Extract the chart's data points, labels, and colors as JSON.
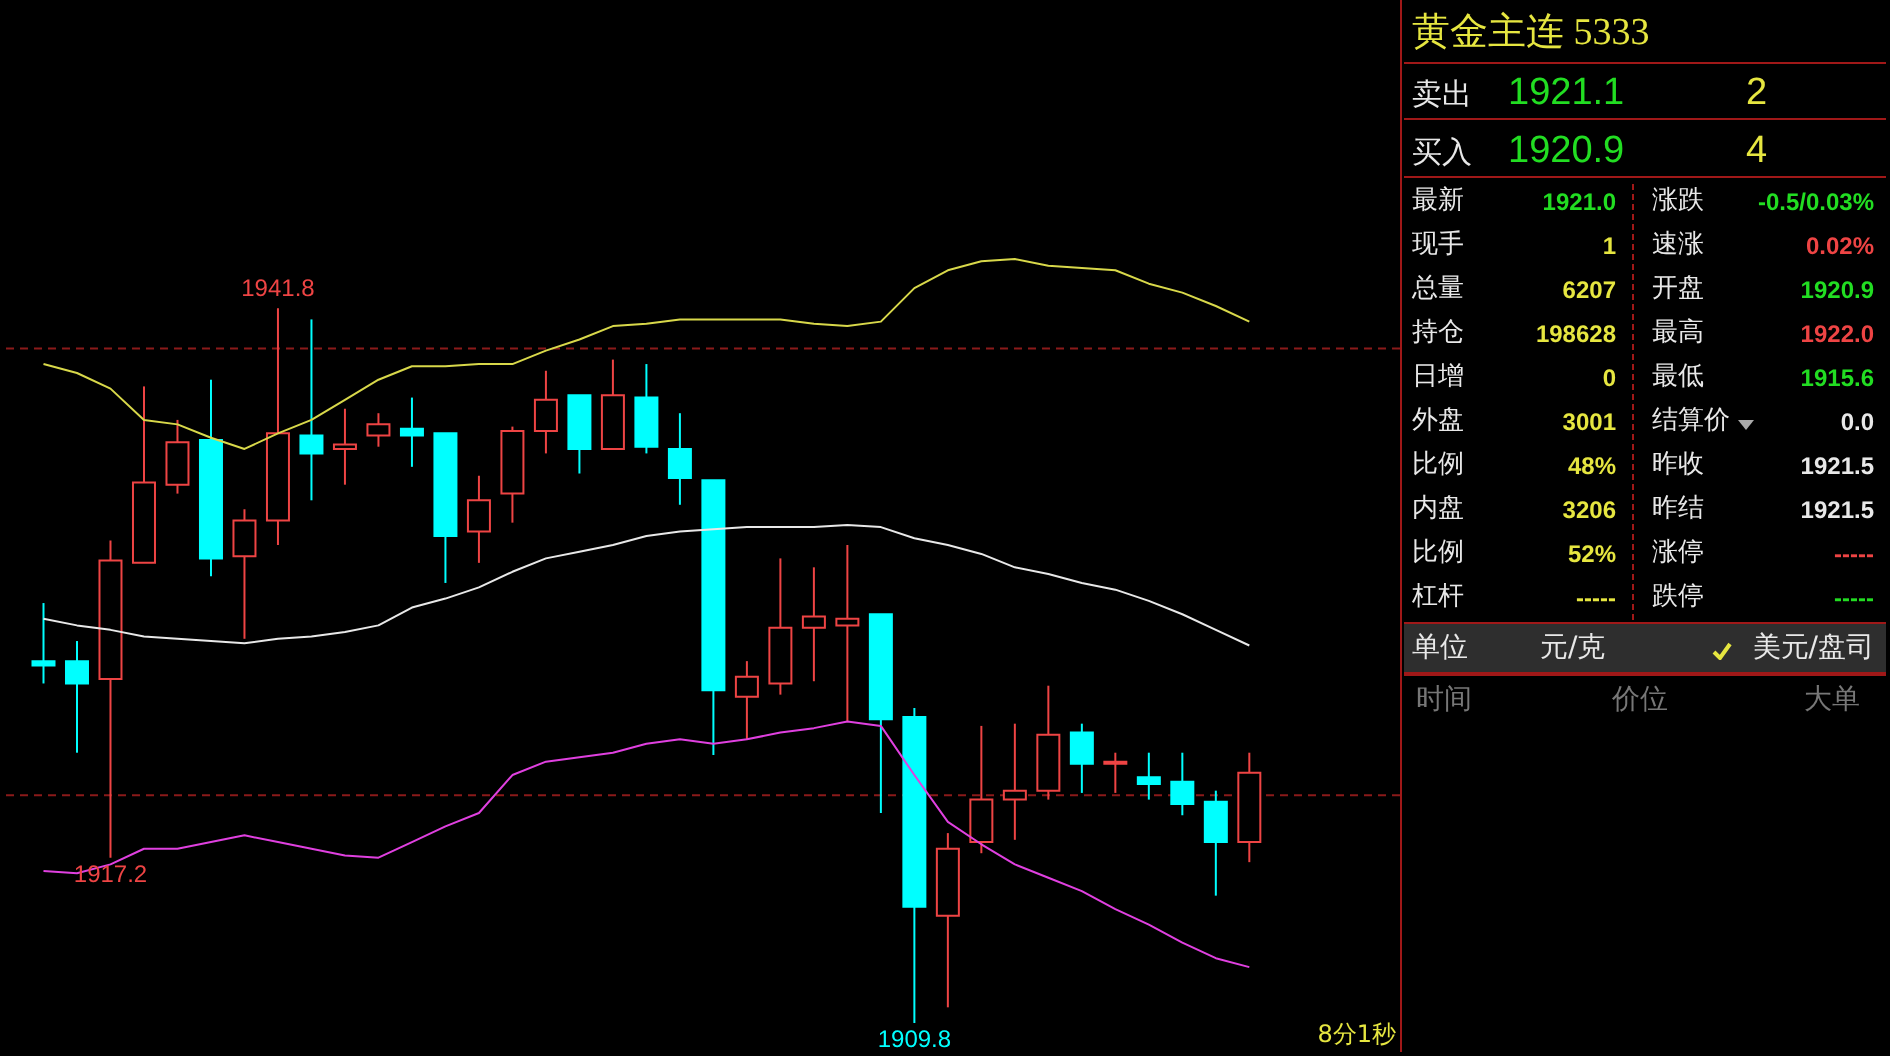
{
  "chart_data": [
    {
      "type": "candlestick",
      "categories": [
        null,
        null,
        null,
        null,
        null,
        null,
        null,
        null,
        null,
        null,
        null,
        null,
        null,
        null,
        null,
        null,
        null,
        null,
        null,
        null,
        null,
        null,
        null,
        null,
        null,
        null,
        null,
        null,
        null,
        null,
        null,
        null,
        null,
        null,
        null,
        null,
        null
      ],
      "ohlc": [
        [
          1926.0,
          1928.6,
          1925.0,
          1925.8
        ],
        [
          1926.0,
          1926.9,
          1921.9,
          1925.0
        ],
        [
          1925.2,
          1931.4,
          1917.2,
          1930.5
        ],
        [
          1930.4,
          1938.3,
          1930.4,
          1934.0
        ],
        [
          1933.9,
          1936.8,
          1933.5,
          1935.8
        ],
        [
          1935.9,
          1938.6,
          1929.8,
          1930.6
        ],
        [
          1930.7,
          1932.8,
          1927.0,
          1932.3
        ],
        [
          1932.3,
          1941.8,
          1931.2,
          1936.2
        ],
        [
          1936.1,
          1941.3,
          1933.2,
          1935.3
        ],
        [
          1935.5,
          1937.3,
          1933.9,
          1935.7
        ],
        [
          1936.1,
          1937.1,
          1935.6,
          1936.6
        ],
        [
          1936.4,
          1937.8,
          1934.7,
          1936.1
        ],
        [
          1936.2,
          1936.2,
          1929.5,
          1931.6
        ],
        [
          1931.8,
          1934.3,
          1930.4,
          1933.2
        ],
        [
          1933.5,
          1936.5,
          1932.2,
          1936.3
        ],
        [
          1936.3,
          1939.0,
          1935.3,
          1937.7
        ],
        [
          1937.9,
          1937.9,
          1934.4,
          1935.5
        ],
        [
          1935.5,
          1939.5,
          1935.5,
          1937.9
        ],
        [
          1937.8,
          1939.3,
          1935.3,
          1935.6
        ],
        [
          1935.5,
          1937.1,
          1933.0,
          1934.2
        ],
        [
          1934.1,
          1934.1,
          1921.8,
          1924.7
        ],
        [
          1924.4,
          1926.0,
          1922.5,
          1925.3
        ],
        [
          1925.0,
          1930.6,
          1924.5,
          1927.5
        ],
        [
          1927.5,
          1930.2,
          1925.1,
          1928.0
        ],
        [
          1927.6,
          1931.2,
          1923.3,
          1927.9
        ],
        [
          1928.1,
          1928.1,
          1919.2,
          1923.4
        ],
        [
          1923.5,
          1923.9,
          1909.8,
          1915.0
        ],
        [
          1914.6,
          1918.3,
          1910.5,
          1917.6
        ],
        [
          1917.9,
          1923.1,
          1917.4,
          1919.8
        ],
        [
          1919.8,
          1923.2,
          1918.0,
          1920.2
        ],
        [
          1920.2,
          1924.9,
          1919.8,
          1922.7
        ],
        [
          1922.8,
          1923.2,
          1920.1,
          1921.4
        ],
        [
          1921.4,
          1921.9,
          1920.1,
          1921.5
        ],
        [
          1920.8,
          1921.9,
          1919.8,
          1920.5
        ],
        [
          1920.6,
          1921.9,
          1919.1,
          1919.6
        ],
        [
          1919.7,
          1920.2,
          1915.5,
          1917.9
        ],
        [
          1917.9,
          1921.9,
          1917.0,
          1921.0
        ]
      ],
      "colors": [
        "#00ffff",
        "#00ffff",
        "#ee4444",
        "#ee4444",
        "#ee4444",
        "#00ffff",
        "#ee4444",
        "#ee4444",
        "#00ffff",
        "#ee4444",
        "#ee4444",
        "#00ffff",
        "#00ffff",
        "#ee4444",
        "#ee4444",
        "#ee4444",
        "#00ffff",
        "#ee4444",
        "#00ffff",
        "#00ffff",
        "#00ffff",
        "#ee4444",
        "#ee4444",
        "#ee4444",
        "#ee4444",
        "#00ffff",
        "#00ffff",
        "#ee4444",
        "#ee4444",
        "#ee4444",
        "#ee4444",
        "#00ffff",
        "#ee4444",
        "#00ffff",
        "#00ffff",
        "#00ffff",
        "#ee4444"
      ],
      "series": [
        {
          "type": "line",
          "color": "#d8d84a",
          "values": [
            1939.3,
            1938.9,
            1938.2,
            1936.8,
            1936.6,
            1936.0,
            1935.5,
            1936.2,
            1936.8,
            1937.7,
            1938.6,
            1939.2,
            1939.2,
            1939.3,
            1939.3,
            1939.9,
            1940.4,
            1941.0,
            1941.1,
            1941.3,
            1941.3,
            1941.3,
            1941.3,
            1941.1,
            1941.0,
            1941.2,
            1942.7,
            1943.5,
            1943.9,
            1944.0,
            1943.7,
            1943.6,
            1943.5,
            1942.9,
            1942.5,
            1941.9,
            1941.2
          ]
        },
        {
          "type": "line",
          "color": "#e8e8e8",
          "values": [
            1927.9,
            1927.6,
            1927.4,
            1927.1,
            1927.0,
            1926.9,
            1926.8,
            1927.0,
            1927.1,
            1927.3,
            1927.6,
            1928.4,
            1928.8,
            1929.3,
            1930.0,
            1930.6,
            1930.9,
            1931.2,
            1931.6,
            1931.8,
            1931.9,
            1932.0,
            1932.0,
            1932.0,
            1932.1,
            1932.0,
            1931.5,
            1931.2,
            1930.8,
            1930.2,
            1929.9,
            1929.5,
            1929.2,
            1928.7,
            1928.1,
            1927.4,
            1926.7
          ]
        },
        {
          "type": "line",
          "color": "#e040e0",
          "values": [
            1916.6,
            1916.5,
            1916.9,
            1917.6,
            1917.6,
            1917.9,
            1918.2,
            1917.9,
            1917.6,
            1917.3,
            1917.2,
            1917.9,
            1918.6,
            1919.2,
            1920.9,
            1921.5,
            1921.7,
            1921.9,
            1922.3,
            1922.5,
            1922.3,
            1922.5,
            1922.8,
            1923.0,
            1923.3,
            1923.1,
            1920.9,
            1918.8,
            1917.8,
            1916.9,
            1916.3,
            1915.7,
            1914.9,
            1914.2,
            1913.4,
            1912.7,
            1912.3
          ]
        }
      ],
      "ylim": [
        1908.5,
        1955.6
      ],
      "ref_lines": [
        {
          "axis": "y",
          "value": 1940,
          "color": "#8b1a1a",
          "line_style": "dashed"
        },
        {
          "axis": "y",
          "value": 1920,
          "color": "#8b1a1a",
          "line_style": "dashed"
        }
      ],
      "annotations": [
        {
          "text": "1941.8",
          "y": 1941.8
        },
        {
          "text": "1917.2",
          "y": 1917.2
        },
        {
          "text": "1909.8",
          "y": 1909.8
        },
        "8分1秒"
      ]
    },
    {
      "type": "other",
      "title": "黄金主连 5333",
      "annotations": [
        "卖出",
        "1921.1",
        "2",
        "买入",
        "1920.9",
        "4",
        "最新",
        "1921.0",
        "涨跌",
        "-0.5/0.03%",
        "现手",
        "1",
        "速涨",
        "0.02%",
        "总量",
        "6207",
        "开盘",
        "1920.9",
        "持仓",
        "198628",
        "最高",
        "1922.0",
        "日增",
        "0",
        "最低",
        "1915.6",
        "外盘",
        "3001",
        "结算价",
        "0.0",
        "比例",
        "48%",
        "昨收",
        "1921.5",
        "内盘",
        "3206",
        "昨结",
        "1921.5",
        "比例",
        "52%",
        "涨停",
        "-----",
        "杠杆",
        "-----",
        "跌停",
        "-----",
        "单位",
        "元/克",
        "美元/盘司",
        "时间",
        "价位",
        "大单"
      ]
    }
  ]
}
